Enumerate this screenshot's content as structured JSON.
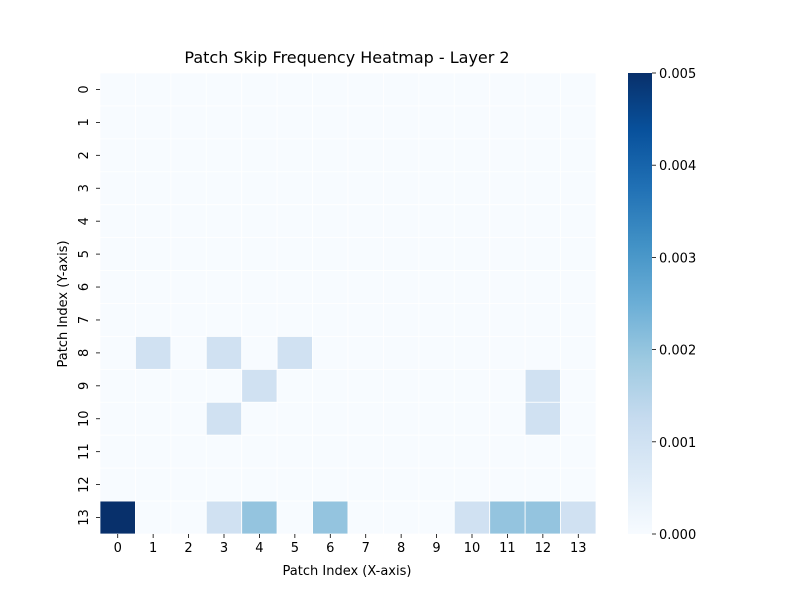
{
  "chart_data": {
    "type": "heatmap",
    "title": "Patch Skip Frequency Heatmap - Layer 2",
    "xlabel": "Patch Index (X-axis)",
    "ylabel": "Patch Index (Y-axis)",
    "x_categories": [
      "0",
      "1",
      "2",
      "3",
      "4",
      "5",
      "6",
      "7",
      "8",
      "9",
      "10",
      "11",
      "12",
      "13"
    ],
    "y_categories": [
      "0",
      "1",
      "2",
      "3",
      "4",
      "5",
      "6",
      "7",
      "8",
      "9",
      "10",
      "11",
      "12",
      "13"
    ],
    "values": [
      [
        0,
        0,
        0,
        0,
        0,
        0,
        0,
        0,
        0,
        0,
        0,
        0,
        0,
        0
      ],
      [
        0,
        0,
        0,
        0,
        0,
        0,
        0,
        0,
        0,
        0,
        0,
        0,
        0,
        0
      ],
      [
        0,
        0,
        0,
        0,
        0,
        0,
        0,
        0,
        0,
        0,
        0,
        0,
        0,
        0
      ],
      [
        0,
        0,
        0,
        0,
        0,
        0,
        0,
        0,
        0,
        0,
        0,
        0,
        0,
        0
      ],
      [
        0,
        0,
        0,
        0,
        0,
        0,
        0,
        0,
        0,
        0,
        0,
        0,
        0,
        0
      ],
      [
        0,
        0,
        0,
        0,
        0,
        0,
        0,
        0,
        0,
        0,
        0,
        0,
        0,
        0
      ],
      [
        0,
        0,
        0,
        0,
        0,
        0,
        0,
        0,
        0,
        0,
        0,
        0,
        0,
        0
      ],
      [
        0,
        0,
        0,
        0,
        0,
        0,
        0,
        0,
        0,
        0,
        0,
        0,
        0,
        0
      ],
      [
        0,
        0.001,
        0,
        0.001,
        0,
        0.001,
        0,
        0,
        0,
        0,
        0,
        0,
        0,
        0
      ],
      [
        0,
        0,
        0,
        0,
        0.001,
        0,
        0,
        0,
        0,
        0,
        0,
        0,
        0.001,
        0
      ],
      [
        0,
        0,
        0,
        0.001,
        0,
        0,
        0,
        0,
        0,
        0,
        0,
        0,
        0.001,
        0
      ],
      [
        0,
        0,
        0,
        0,
        0,
        0,
        0,
        0,
        0,
        0,
        0,
        0,
        0,
        0
      ],
      [
        0,
        0,
        0,
        0,
        0,
        0,
        0,
        0,
        0,
        0,
        0,
        0,
        0,
        0
      ],
      [
        0.005,
        0,
        0,
        0.001,
        0.002,
        0,
        0.002,
        0,
        0,
        0,
        0.001,
        0.002,
        0.002,
        0.001
      ]
    ],
    "colorbar": {
      "colormap": "Blues",
      "range": [
        0,
        0.005
      ],
      "ticks": [
        "0.000",
        "0.001",
        "0.002",
        "0.003",
        "0.004",
        "0.005"
      ]
    },
    "grid": true
  }
}
